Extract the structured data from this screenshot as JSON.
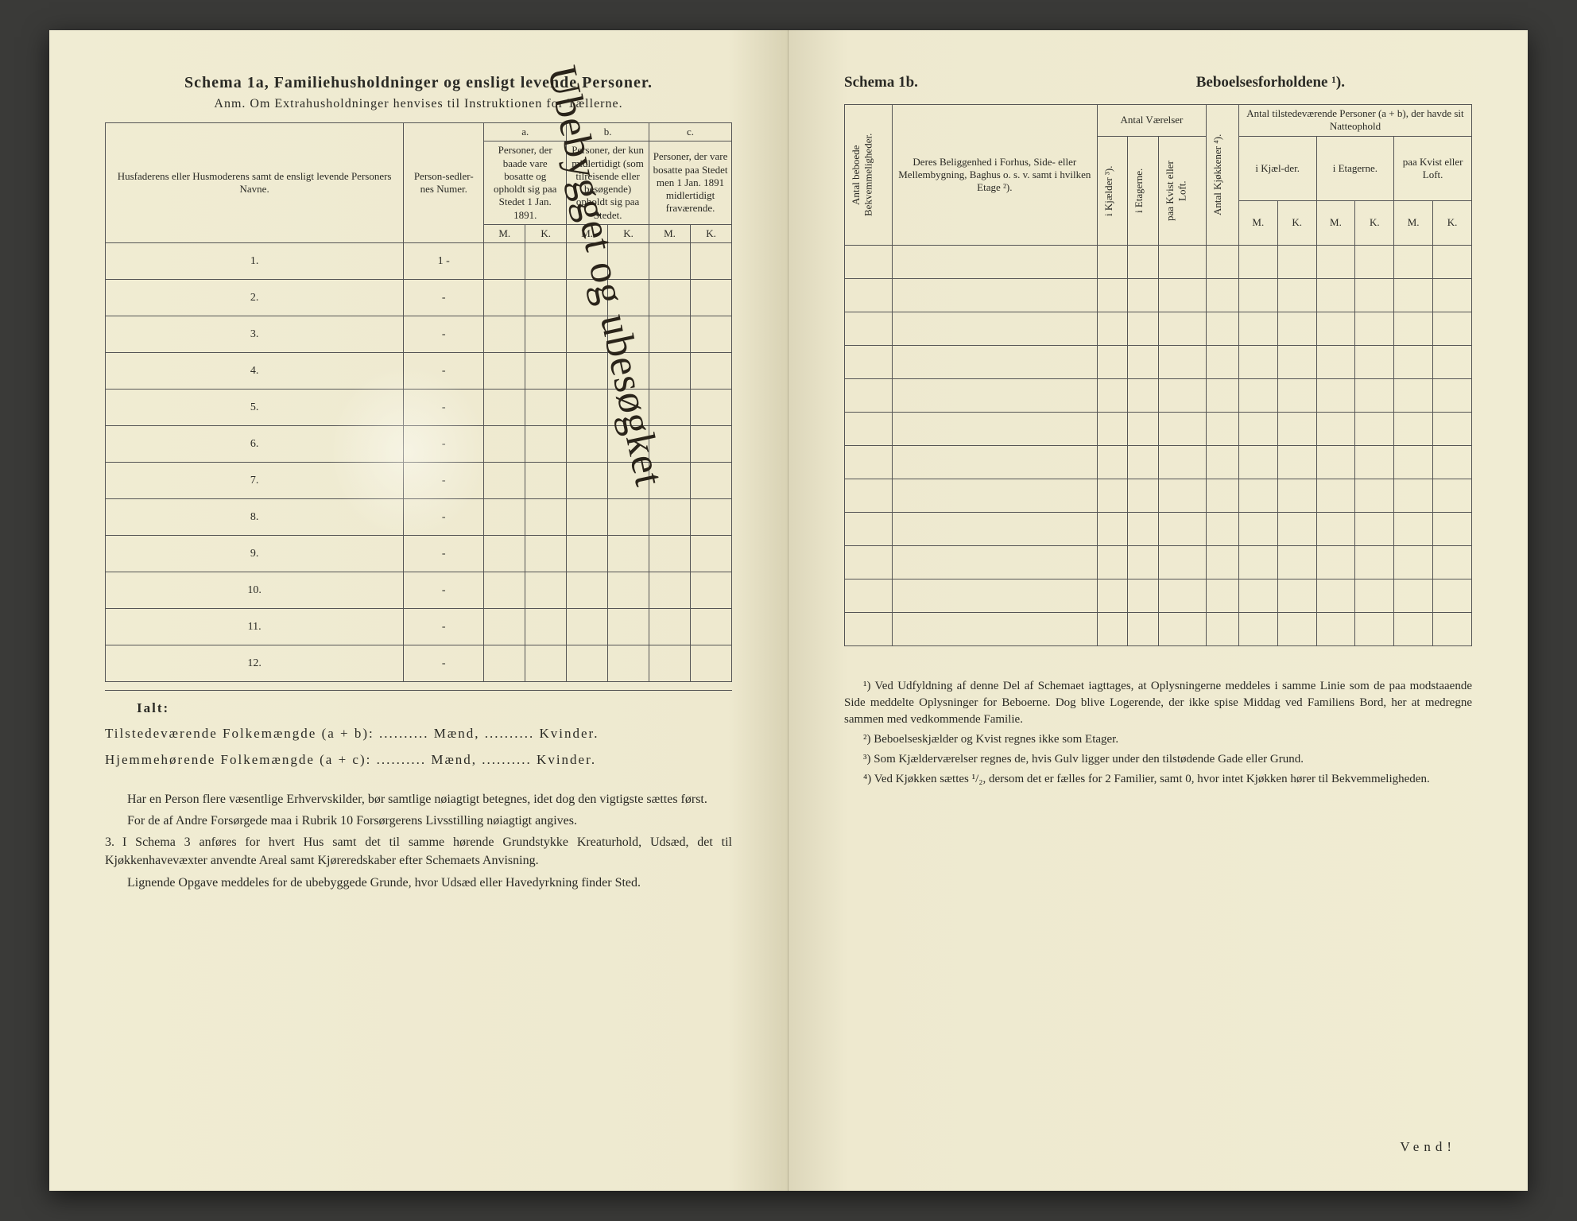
{
  "left": {
    "title": "Schema 1a,  Familiehusholdninger og ensligt levende Personer.",
    "subtitle": "Anm. Om Extrahusholdninger henvises til Instruktionen for Tællerne.",
    "col_names": "Husfaderens eller Husmoderens samt de ensligt levende Personers Navne.",
    "col_person": "Person-sedler-nes Numer.",
    "group_a": "a.",
    "group_a_text": "Personer, der baade vare bosatte og opholdt sig paa Stedet 1 Jan. 1891.",
    "group_b": "b.",
    "group_b_text": "Personer, der kun midlertidigt (som tilreisende eller besøgende) opholdt sig paa Stedet.",
    "group_c": "c.",
    "group_c_text": "Personer, der vare bosatte paa Stedet men 1 Jan. 1891 midlertidigt fraværende.",
    "M": "M.",
    "K": "K.",
    "rows": [
      "1.",
      "2.",
      "3.",
      "4.",
      "5.",
      "6.",
      "7.",
      "8.",
      "9.",
      "10.",
      "11.",
      "12."
    ],
    "first_person": "1 -",
    "ialt": "Ialt:",
    "tot1": "Tilstedeværende Folkemængde (a + b): .......... Mænd, .......... Kvinder.",
    "tot2": "Hjemmehørende Folkemængde (a + c): .......... Mænd, .......... Kvinder.",
    "p1": "Har en Person flere væsentlige Erhvervskilder, bør samtlige nøiagtigt betegnes, idet dog den vigtigste sættes først.",
    "p2": "For de af Andre Forsørgede maa i Rubrik 10 Forsørgerens Livsstilling nøiagtigt angives.",
    "p3_num": "3.",
    "p3": "I Schema 3 anføres for hvert Hus samt det til samme hørende Grundstykke Kreaturhold, Udsæd, det til Kjøkkenhavevæxter anvendte Areal samt Kjøreredskaber efter Schemaets Anvisning.",
    "p4": "Lignende Opgave meddeles for de ubebyggede Grunde, hvor Udsæd eller Havedyrkning finder Sted.",
    "handwriting": "Ubebygget og ubesøgket"
  },
  "right": {
    "title_a": "Schema 1b.",
    "title_b": "Beboelsesforholdene ¹).",
    "col_antal_beboede": "Antal beboede Bekvemmeligheder.",
    "col_beliggenhed": "Deres Beliggenhed i Forhus, Side- eller Mellembygning, Baghus o. s. v. samt i hvilken Etage ²).",
    "grp_vaerelser": "Antal Værelser",
    "col_kjaelder": "i Kjælder ³).",
    "col_etagerne": "i Etagerne.",
    "col_kvist": "paa Kvist eller Loft.",
    "col_kjokkener": "Antal Kjøkkener ⁴).",
    "grp_tilstede": "Antal tilstedeværende Personer (a + b), der havde sit Natteophold",
    "sub_kjaelder": "i Kjæl-der.",
    "sub_etagerne": "i Etagerne.",
    "sub_kvist": "paa Kvist eller Loft.",
    "M": "M.",
    "K": "K.",
    "fn1": "¹) Ved Udfyldning af denne Del af Schemaet iagttages, at Oplysningerne meddeles i samme Linie som de paa modstaaende Side meddelte Oplysninger for Beboerne. Dog blive Logerende, der ikke spise Middag ved Familiens Bord, her at medregne sammen med vedkommende Familie.",
    "fn2": "²) Beboelseskjælder og Kvist regnes ikke som Etager.",
    "fn3": "³) Som Kjælderværelser regnes de, hvis Gulv ligger under den tilstødende Gade eller Grund.",
    "fn4": "⁴) Ved Kjøkken sættes ¹/₂, dersom det er fælles for 2 Familier, samt 0, hvor intet Kjøkken hører til Bekvemmeligheden.",
    "vend": "Vend!"
  }
}
